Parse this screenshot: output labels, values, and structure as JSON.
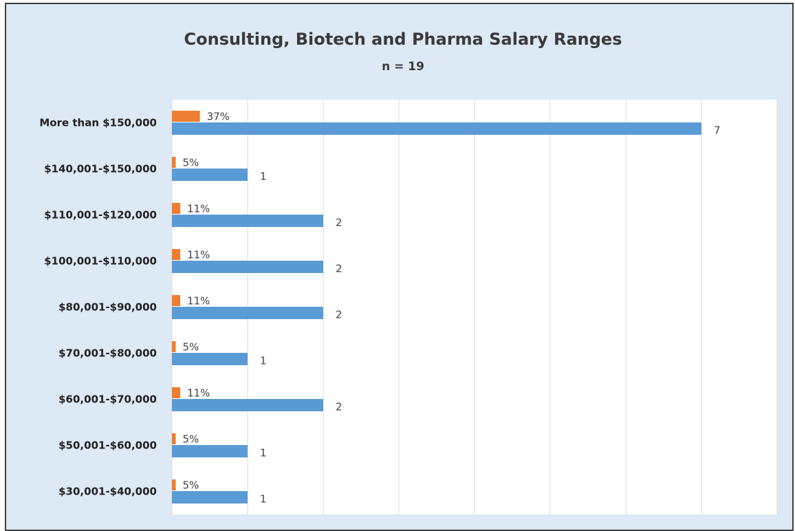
{
  "chart_data": {
    "type": "hbar",
    "title": "Consulting, Biotech and Pharma Salary Ranges",
    "subtitle": "n = 19",
    "categories": [
      "More than $150,000",
      "$140,001-$150,000",
      "$110,001-$120,000",
      "$100,001-$110,000",
      "$80,001-$90,000",
      "$70,001-$80,000",
      "$60,001-$70,000",
      "$50,001-$60,000",
      "$30,001-$40,000"
    ],
    "series": [
      {
        "color": "#ed7d31",
        "values": [
          0.37,
          0.05,
          0.11,
          0.11,
          0.11,
          0.05,
          0.11,
          0.05,
          0.05
        ],
        "value_labels": [
          "37%",
          "5%",
          "11%",
          "11%",
          "11%",
          "5%",
          "11%",
          "5%",
          "5%"
        ]
      },
      {
        "color": "#5b9bd5",
        "values": [
          7,
          1,
          2,
          2,
          2,
          1,
          2,
          1,
          1
        ]
      }
    ],
    "xlim": [
      0,
      8
    ],
    "xticks": [
      0,
      1,
      2,
      3,
      4,
      5,
      6,
      7,
      8
    ],
    "grid": true
  }
}
